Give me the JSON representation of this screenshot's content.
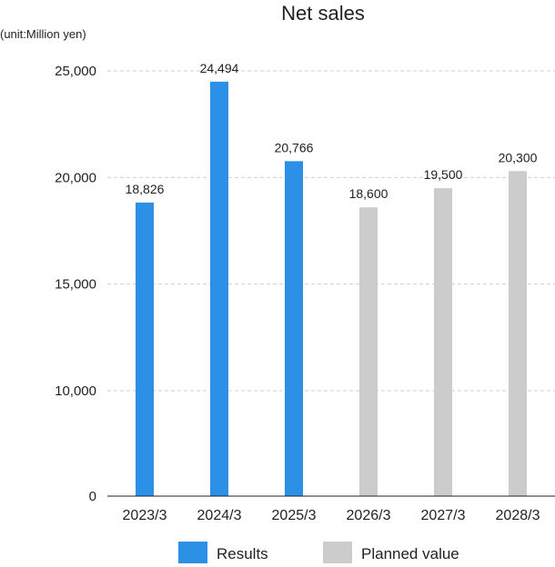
{
  "chart_data": {
    "type": "bar",
    "title": "Net sales",
    "unit_label": "(unit:Million yen)",
    "xlabel": "",
    "ylabel": "",
    "categories": [
      "2023/3",
      "2024/3",
      "2025/3",
      "2026/3",
      "2027/3",
      "2028/3"
    ],
    "values": [
      18826,
      24494,
      20766,
      18600,
      19500,
      20300
    ],
    "value_labels": [
      "18,826",
      "24,494",
      "20,766",
      "18,600",
      "19,500",
      "20,300"
    ],
    "bar_series": [
      "Results",
      "Results",
      "Results",
      "Planned value",
      "Planned value",
      "Planned value"
    ],
    "series": [
      {
        "name": "Results",
        "color": "#2b90e6"
      },
      {
        "name": "Planned value",
        "color": "#cccccc"
      }
    ],
    "ylim": [
      0,
      25000
    ],
    "y_ticks": [
      0,
      10000,
      15000,
      20000,
      25000
    ],
    "y_tick_labels": [
      "0",
      "10,000",
      "15,000",
      "20,000",
      "25,000"
    ],
    "y_axis_break": true,
    "grid": true,
    "legend_position": "bottom-center"
  }
}
